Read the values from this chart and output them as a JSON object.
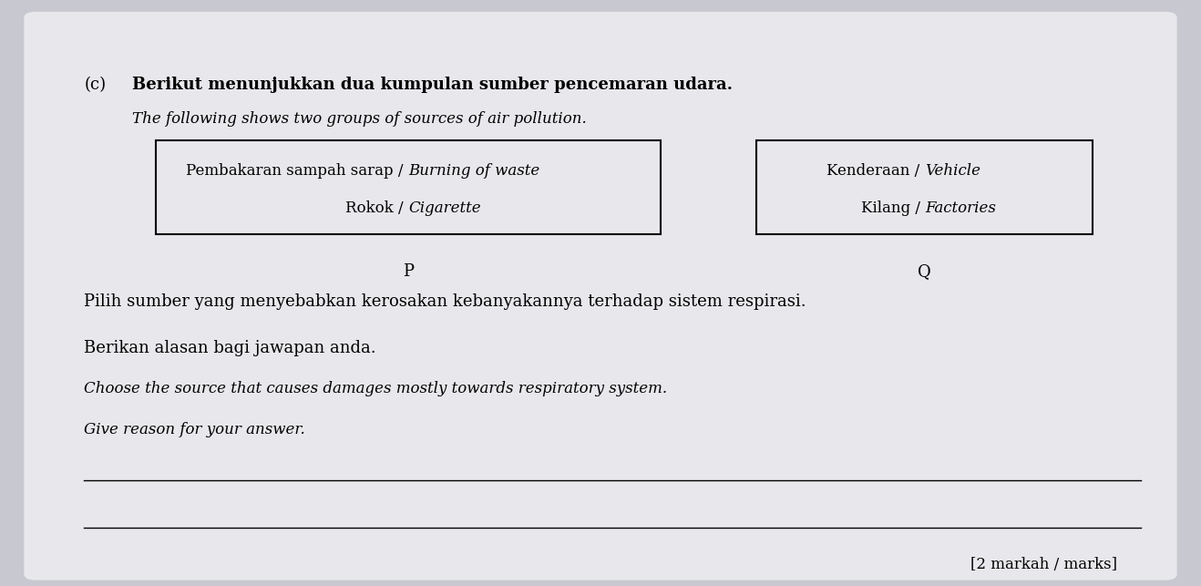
{
  "bg_color": "#c8c8d0",
  "paper_color": "#e8e8ec",
  "question_letter": "(c)",
  "title_malay": "Berikut menunjukkan dua kumpulan sumber pencemaran udara.",
  "title_english": "The following shows two groups of sources of air pollution.",
  "box_P_line1_normal": "Pembakaran sampah sarap / ",
  "box_P_line1_italic": "Burning of waste",
  "box_P_line2_normal": "Rokok / ",
  "box_P_line2_italic": "Cigarette",
  "box_Q_line1_normal": "Kenderaan / ",
  "box_Q_line1_italic": "Vehicle",
  "box_Q_line2_normal": "Kilang / ",
  "box_Q_line2_italic": "Factories",
  "label_P": "P",
  "label_Q": "Q",
  "body_line1_malay": "Pilih sumber yang menyebabkan kerosakan kebanyakannya terhadap sistem respirasi.",
  "body_line2_malay": "Berikan alasan bagi jawapan anda.",
  "body_line1_english": "Choose the source that causes damages mostly towards respiratory system.",
  "body_line2_english": "Give reason for your answer.",
  "marks_text": "[2 markah / marks]",
  "font_size_title": 13,
  "font_size_body": 13,
  "font_size_box": 12,
  "font_size_label": 13,
  "font_size_marks": 12
}
